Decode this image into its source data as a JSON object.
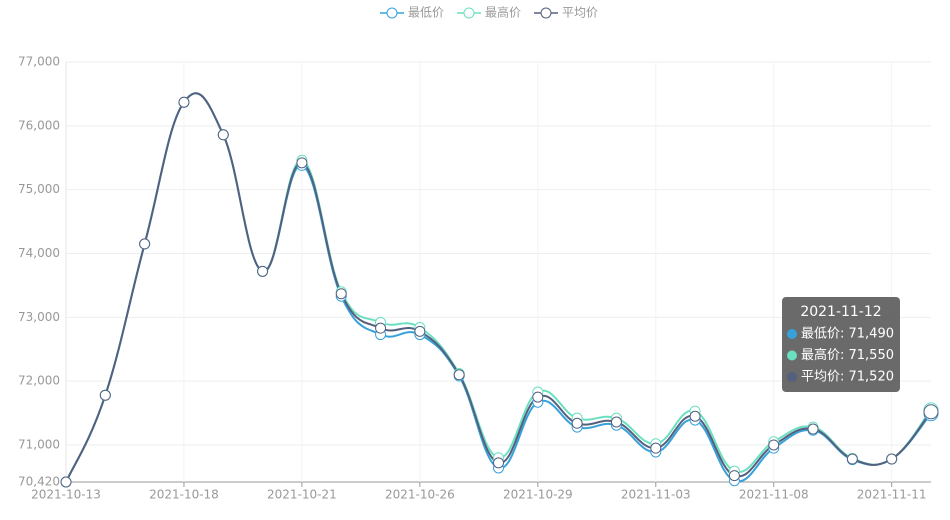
{
  "chart_data": {
    "type": "line",
    "categories": [
      "2021-10-13",
      null,
      null,
      "2021-10-18",
      null,
      null,
      "2021-10-21",
      null,
      null,
      "2021-10-26",
      null,
      null,
      "2021-10-29",
      null,
      null,
      "2021-11-03",
      null,
      null,
      "2021-11-08",
      null,
      null,
      "2021-11-11",
      "2021-11-12"
    ],
    "series": [
      {
        "name": "最低价",
        "color": "#37a2da",
        "values": [
          70420,
          71780,
          74150,
          76370,
          75860,
          73720,
          75380,
          73330,
          72730,
          72730,
          72080,
          70640,
          71670,
          71280,
          71310,
          70890,
          71390,
          70440,
          70950,
          71230,
          70770,
          70780,
          71490
        ]
      },
      {
        "name": "最高价",
        "color": "#6be0c0",
        "values": [
          70420,
          71780,
          74150,
          76370,
          75860,
          73720,
          75460,
          73400,
          72920,
          72840,
          72120,
          70800,
          71830,
          71420,
          71420,
          71020,
          71530,
          70590,
          71050,
          71280,
          70790,
          70780,
          71550
        ]
      },
      {
        "name": "平均价",
        "color": "#55607f",
        "values": [
          70420,
          71780,
          74150,
          76370,
          75860,
          73720,
          75420,
          73370,
          72830,
          72780,
          72100,
          70720,
          71750,
          71340,
          71360,
          70950,
          71450,
          70520,
          71000,
          71250,
          70780,
          70780,
          71520
        ]
      }
    ],
    "ylim": [
      70420,
      77000
    ],
    "yticks": [
      {
        "value": 70420,
        "label": "70,420"
      },
      {
        "value": 71000,
        "label": "71,000"
      },
      {
        "value": 72000,
        "label": "72,000"
      },
      {
        "value": 73000,
        "label": "73,000"
      },
      {
        "value": 74000,
        "label": "74,000"
      },
      {
        "value": 75000,
        "label": "75,000"
      },
      {
        "value": 76000,
        "label": "76,000"
      },
      {
        "value": 77000,
        "label": "77,000"
      }
    ],
    "grid": true,
    "legend": "top",
    "tooltip": {
      "title": "2021-11-12",
      "rows": [
        "最低价: 71,490",
        "最高价: 71,550",
        "平均价: 71,520"
      ]
    }
  }
}
